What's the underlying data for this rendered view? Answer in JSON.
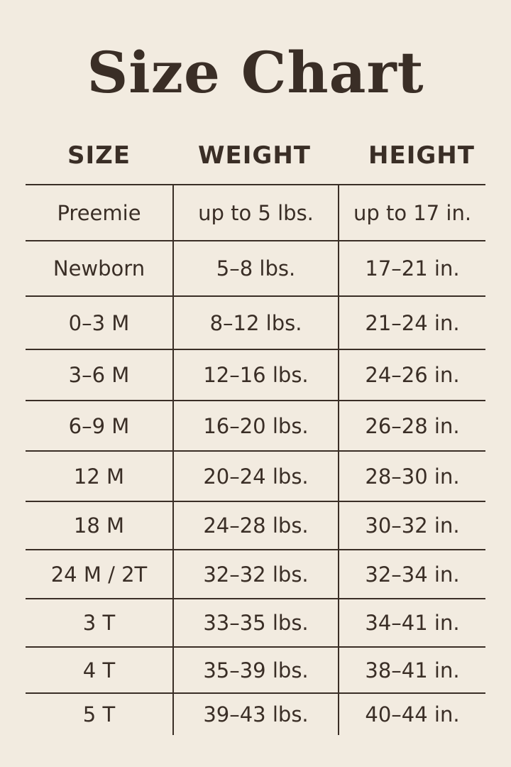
{
  "title": "Size Chart",
  "colors": {
    "background": "#f2ebe0",
    "ink": "#3a2e26"
  },
  "headers": [
    "SIZE",
    "WEIGHT",
    "HEIGHT"
  ],
  "rows": [
    {
      "size": "Preemie",
      "weight": "up to 5 lbs.",
      "height": "up to 17 in."
    },
    {
      "size": "Newborn",
      "weight": "5–8 lbs.",
      "height": "17–21 in."
    },
    {
      "size": "0–3 M",
      "weight": "8–12 lbs.",
      "height": "21–24 in."
    },
    {
      "size": "3–6 M",
      "weight": "12–16 lbs.",
      "height": "24–26 in."
    },
    {
      "size": "6–9 M",
      "weight": "16–20 lbs.",
      "height": "26–28 in."
    },
    {
      "size": "12 M",
      "weight": "20–24 lbs.",
      "height": "28–30 in."
    },
    {
      "size": "18 M",
      "weight": "24–28 lbs.",
      "height": "30–32 in."
    },
    {
      "size": "24 M / 2T",
      "weight": "32–32 lbs.",
      "height": "32–34 in."
    },
    {
      "size": "3 T",
      "weight": "33–35 lbs.",
      "height": "34–41 in."
    },
    {
      "size": "4 T",
      "weight": "35–39 lbs.",
      "height": "38–41 in."
    },
    {
      "size": "5 T",
      "weight": "39–43 lbs.",
      "height": "40–44 in."
    }
  ]
}
